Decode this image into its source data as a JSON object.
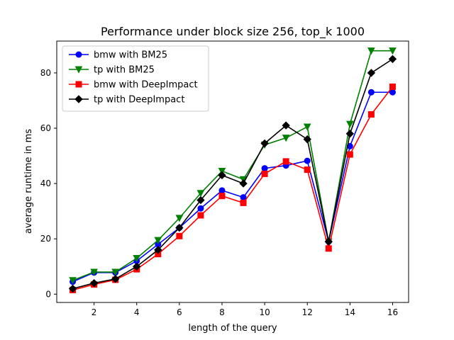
{
  "chart_data": {
    "type": "line",
    "title": "Performance under block size 256, top_k 1000",
    "xlabel": "length of the query",
    "ylabel": "average runtime in ms",
    "xlim": [
      0.25,
      16.75
    ],
    "ylim": [
      -3,
      91.5
    ],
    "xticks": [
      2,
      4,
      6,
      8,
      10,
      12,
      14,
      16
    ],
    "yticks": [
      0,
      20,
      40,
      60,
      80
    ],
    "grid": false,
    "legend_position": "upper-left",
    "x": [
      1,
      2,
      3,
      4,
      5,
      6,
      7,
      8,
      9,
      10,
      11,
      12,
      13,
      14,
      15,
      16
    ],
    "series": [
      {
        "name": "bmw with BM25",
        "color": "#0000ff",
        "marker": "circle",
        "values": [
          4.5,
          7.8,
          7.8,
          12,
          18,
          24,
          31,
          37.5,
          35,
          45.5,
          46.5,
          48.2,
          19,
          53.5,
          73,
          73
        ]
      },
      {
        "name": "tp with BM25",
        "color": "#008000",
        "marker": "triangle-down",
        "values": [
          5,
          8,
          8,
          13,
          19.5,
          27.5,
          36.5,
          44.5,
          41.5,
          54,
          56.5,
          60.5,
          19,
          61.5,
          88,
          88
        ]
      },
      {
        "name": "bmw with DeepImpact",
        "color": "#ff0000",
        "marker": "square",
        "values": [
          1.5,
          3.5,
          5.2,
          9,
          14.5,
          21,
          28.5,
          35.5,
          33,
          43.5,
          48,
          45,
          16.5,
          50.5,
          65,
          75
        ]
      },
      {
        "name": "tp with DeepImpact",
        "color": "#000000",
        "marker": "diamond",
        "values": [
          2,
          4,
          5.5,
          10,
          16,
          24,
          34,
          43,
          40,
          54.5,
          61,
          56,
          19,
          58,
          80,
          85
        ]
      }
    ]
  }
}
